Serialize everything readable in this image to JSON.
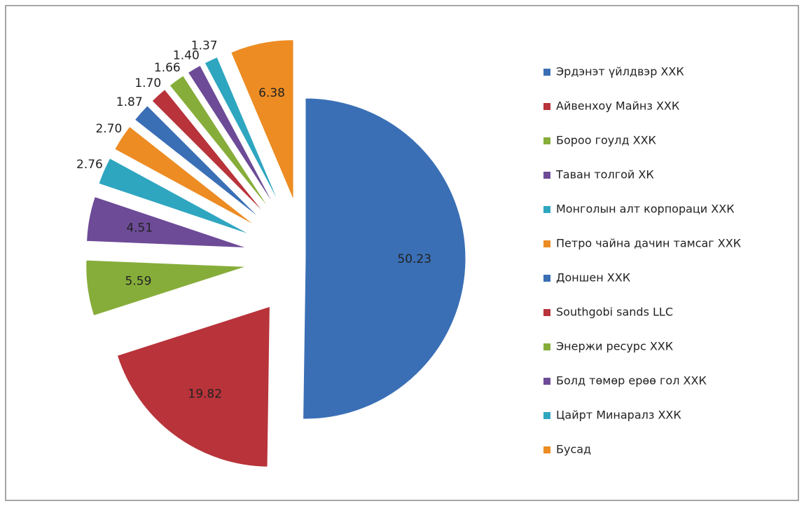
{
  "chart_data": {
    "type": "pie",
    "categories": [
      "Эрдэнэт үйлдвэр ХХК",
      "Айвенхоу Майнз ХХК",
      "Бороо гоулд ХХК",
      "Таван толгой ХК",
      "Монголын алт корпораци ХХК",
      "Петро чайна дачин тамсаг ХХК",
      "Доншен ХХК",
      "Southgobi sands LLC",
      "Энержи ресурс ХХК",
      "Болд төмөр ерөө гол ХХК",
      "Цайрт Минаралз ХХК",
      "Бусад"
    ],
    "values": [
      50.23,
      19.82,
      5.59,
      4.51,
      2.76,
      2.7,
      1.87,
      1.7,
      1.66,
      1.4,
      1.37,
      6.38
    ],
    "value_labels": [
      "50.23",
      "19.82",
      "5.59",
      "4.51",
      "2.76",
      "2.70",
      "1.87",
      "1.70",
      "1.66",
      "1.40",
      "1.37",
      "6.38"
    ],
    "colors": [
      "#3a6fb5",
      "#b8333a",
      "#86ad3a",
      "#6d4b97",
      "#2fa6c0",
      "#ec8c23",
      "#3a6fb5",
      "#b8333a",
      "#86ad3a",
      "#6d4b97",
      "#2fa6c0",
      "#ec8c23"
    ],
    "legend": "right"
  }
}
